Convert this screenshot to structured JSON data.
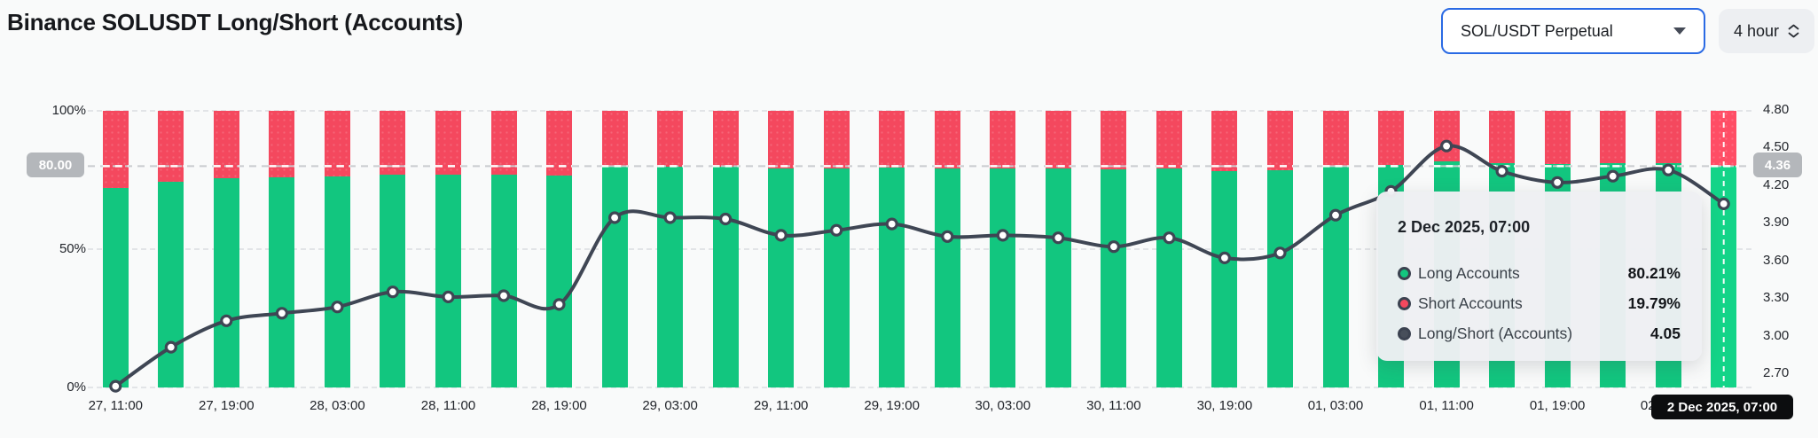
{
  "header": {
    "title": "Binance SOLUSDT Long/Short (Accounts)",
    "pair_selector": {
      "label": "SOL/USDT Perpetual"
    },
    "interval_selector": {
      "label": "4 hour"
    }
  },
  "colors": {
    "long_green": "#12c67f",
    "short_red": "#f4485e",
    "ratio_line": "#3f4654",
    "accent_blue": "#2a6ae4"
  },
  "chart_data": {
    "type": "bar",
    "subtype": "stacked-percent-bars-with-line-overlay",
    "title": "Binance SOLUSDT Long/Short (Accounts)",
    "x_tick_labels": [
      "27, 11:00",
      "27, 19:00",
      "28, 03:00",
      "28, 11:00",
      "28, 19:00",
      "29, 03:00",
      "29, 11:00",
      "29, 19:00",
      "30, 03:00",
      "30, 11:00",
      "30, 19:00",
      "01, 03:00",
      "01, 11:00",
      "01, 19:00",
      "02, 03:00"
    ],
    "x_tick_every_n_bars": 2,
    "series": [
      {
        "name": "Long Accounts",
        "type": "bar",
        "unit": "%",
        "color": "#12c67f",
        "values": [
          72.22,
          74.42,
          75.73,
          76.08,
          76.36,
          77.01,
          76.8,
          76.85,
          76.47,
          79.76,
          79.76,
          79.72,
          79.17,
          79.34,
          79.55,
          79.12,
          79.17,
          79.08,
          78.77,
          79.08,
          78.35,
          78.54,
          79.84,
          80.58,
          81.85,
          81.17,
          80.84,
          81.02,
          81.2,
          80.21
        ]
      },
      {
        "name": "Short Accounts",
        "type": "bar",
        "unit": "%",
        "color": "#f4485e",
        "values": [
          27.78,
          25.58,
          24.27,
          23.92,
          23.64,
          22.99,
          23.2,
          23.15,
          23.53,
          20.24,
          20.24,
          20.28,
          20.83,
          20.66,
          20.45,
          20.88,
          20.83,
          20.92,
          21.23,
          20.92,
          21.65,
          21.46,
          20.16,
          19.42,
          18.15,
          18.83,
          19.16,
          18.98,
          18.8,
          19.79
        ]
      },
      {
        "name": "Long/Short (Accounts)",
        "type": "line",
        "color": "#3f4654",
        "values": [
          2.6,
          2.91,
          3.12,
          3.18,
          3.23,
          3.35,
          3.31,
          3.32,
          3.25,
          3.94,
          3.94,
          3.93,
          3.8,
          3.84,
          3.89,
          3.79,
          3.8,
          3.78,
          3.71,
          3.78,
          3.62,
          3.66,
          3.96,
          4.15,
          4.51,
          4.31,
          4.22,
          4.27,
          4.32,
          4.05
        ]
      }
    ],
    "left_axis": {
      "ticks": [
        "0%",
        "50%",
        "100%"
      ],
      "tick_values": [
        0,
        50,
        100
      ],
      "range": [
        0,
        100
      ]
    },
    "right_axis": {
      "ticks": [
        "2.70",
        "3.00",
        "3.30",
        "3.60",
        "3.90",
        "4.20",
        "4.50",
        "4.80"
      ],
      "tick_values": [
        2.7,
        3.0,
        3.3,
        3.6,
        3.9,
        4.2,
        4.5,
        4.8
      ],
      "range": [
        2.59,
        4.79
      ]
    },
    "grid": "dashed-horizontal",
    "crosshair": {
      "left_label": "80.00",
      "right_label": "4.36",
      "x_label": "2 Dec 2025, 07:00",
      "left_value": 80.0,
      "right_value": 4.36,
      "bar_index": 29
    },
    "tooltip": {
      "title": "2 Dec 2025, 07:00",
      "rows": [
        {
          "label": "Long Accounts",
          "value": "80.21%",
          "color": "#12c67f"
        },
        {
          "label": "Short Accounts",
          "value": "19.79%",
          "color": "#f4485e"
        },
        {
          "label": "Long/Short (Accounts)",
          "value": "4.05",
          "color": "#474e5a"
        }
      ]
    }
  }
}
